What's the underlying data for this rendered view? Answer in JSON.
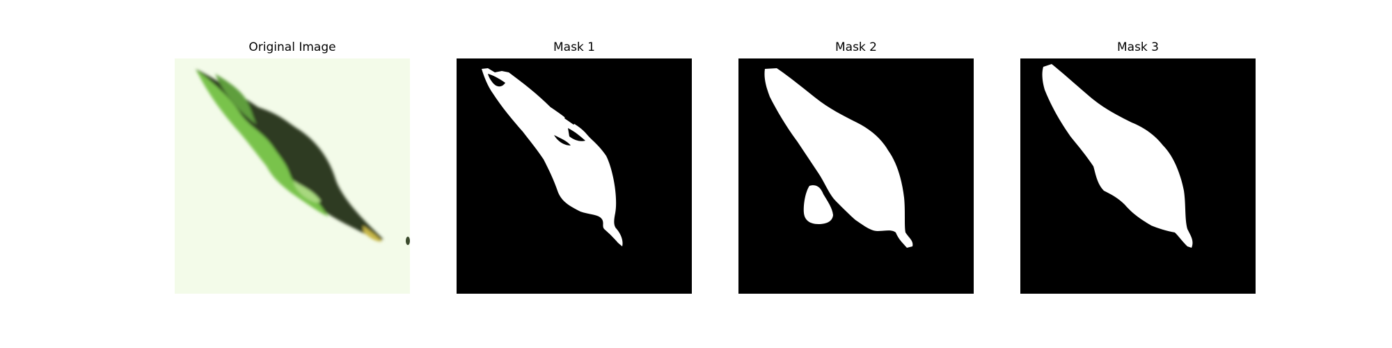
{
  "panels": [
    {
      "title": "Original Image"
    },
    {
      "title": "Mask 1"
    },
    {
      "title": "Mask 2"
    },
    {
      "title": "Mask 3"
    }
  ],
  "colors": {
    "original_background": "#f3fbe9",
    "leaf_light_green": "#79c34c",
    "leaf_dark_green": "#2e3a24",
    "mask_background": "#000000",
    "mask_foreground": "#ffffff"
  }
}
